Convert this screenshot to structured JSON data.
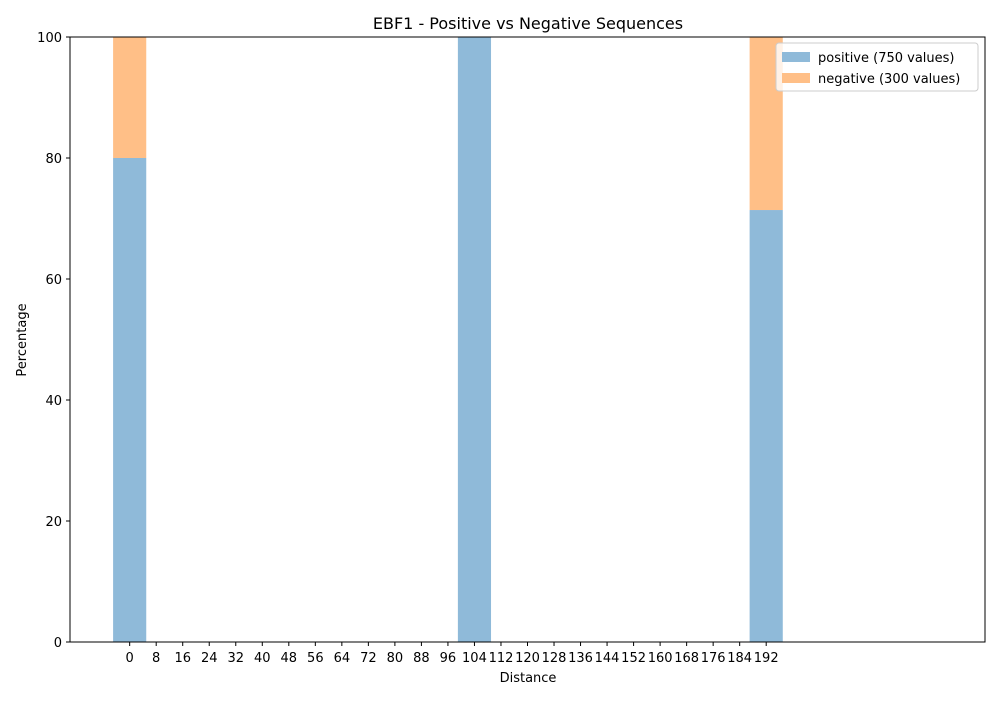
{
  "chart_data": {
    "type": "bar",
    "stacked": true,
    "title": "EBF1 - Positive vs Negative Sequences",
    "xlabel": "Distance",
    "ylabel": "Percentage",
    "ylim": [
      0,
      100
    ],
    "xlim": [
      -18,
      258
    ],
    "bar_width": 10,
    "grid": false,
    "legend_position": "top-right",
    "x_ticks": [
      0,
      8,
      16,
      24,
      32,
      40,
      48,
      56,
      64,
      72,
      80,
      88,
      96,
      104,
      112,
      120,
      128,
      136,
      144,
      152,
      160,
      168,
      176,
      184,
      192
    ],
    "y_ticks": [
      0,
      20,
      40,
      60,
      80,
      100
    ],
    "x": [
      0,
      104,
      192
    ],
    "series": [
      {
        "name": "positive (750 values)",
        "color": "#8fbad9",
        "values": [
          80,
          100,
          71.4
        ]
      },
      {
        "name": "negative (300 values)",
        "color": "#ffbf87",
        "values": [
          20,
          0,
          28.6
        ]
      }
    ]
  }
}
